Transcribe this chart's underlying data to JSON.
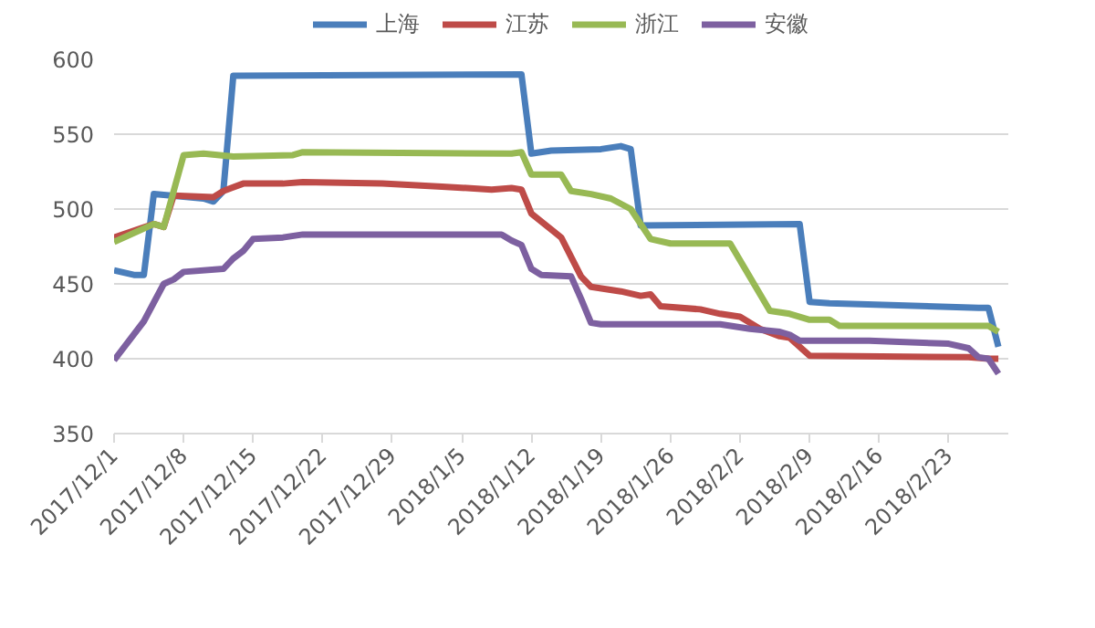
{
  "chart_data": {
    "type": "line",
    "xlim": [
      "2017-12-01",
      "2018-03-01"
    ],
    "xticks": [
      {
        "value": "2017-12-01",
        "label": "2017/12/1"
      },
      {
        "value": "2017-12-08",
        "label": "2017/12/8"
      },
      {
        "value": "2017-12-15",
        "label": "2017/12/15"
      },
      {
        "value": "2017-12-22",
        "label": "2017/12/22"
      },
      {
        "value": "2017-12-29",
        "label": "2017/12/29"
      },
      {
        "value": "2018-01-05",
        "label": "2018/1/5"
      },
      {
        "value": "2018-01-12",
        "label": "2018/1/12"
      },
      {
        "value": "2018-01-19",
        "label": "2018/1/19"
      },
      {
        "value": "2018-01-26",
        "label": "2018/1/26"
      },
      {
        "value": "2018-02-02",
        "label": "2018/2/2"
      },
      {
        "value": "2018-02-09",
        "label": "2018/2/9"
      },
      {
        "value": "2018-02-16",
        "label": "2018/2/16"
      },
      {
        "value": "2018-02-23",
        "label": "2018/2/23"
      }
    ],
    "ylim": [
      350,
      600
    ],
    "yticks": [
      350,
      400,
      450,
      500,
      550,
      600
    ],
    "grid": "y",
    "legend": "top",
    "line_style": "solid",
    "series": [
      {
        "name": "上海",
        "color": "#4a7ebb",
        "x": [
          "2017-12-01",
          "2017-12-03",
          "2017-12-04",
          "2017-12-05",
          "2017-12-10",
          "2017-12-11",
          "2017-12-12",
          "2017-12-13",
          "2018-01-11",
          "2018-01-12",
          "2018-01-14",
          "2018-01-19",
          "2018-01-21",
          "2018-01-22",
          "2018-01-23",
          "2018-02-08",
          "2018-02-09",
          "2018-02-11",
          "2018-02-26",
          "2018-02-27",
          "2018-02-28"
        ],
        "values": [
          459,
          456,
          456,
          510,
          507,
          505,
          512,
          589,
          590,
          537,
          539,
          540,
          542,
          540,
          489,
          490,
          438,
          437,
          434,
          434,
          408
        ]
      },
      {
        "name": "江苏",
        "color": "#be4b48",
        "x": [
          "2017-12-01",
          "2017-12-05",
          "2017-12-06",
          "2017-12-07",
          "2017-12-11",
          "2017-12-12",
          "2017-12-14",
          "2017-12-18",
          "2017-12-20",
          "2017-12-28",
          "2018-01-03",
          "2018-01-08",
          "2018-01-10",
          "2018-01-11",
          "2018-01-12",
          "2018-01-15",
          "2018-01-17",
          "2018-01-18",
          "2018-01-21",
          "2018-01-23",
          "2018-01-24",
          "2018-01-25",
          "2018-01-29",
          "2018-01-31",
          "2018-02-02",
          "2018-02-04",
          "2018-02-06",
          "2018-02-07",
          "2018-02-09",
          "2018-02-25",
          "2018-02-27",
          "2018-02-28"
        ],
        "values": [
          481,
          490,
          488,
          509,
          508,
          512,
          517,
          517,
          518,
          517,
          515,
          513,
          514,
          513,
          497,
          481,
          455,
          448,
          445,
          442,
          443,
          435,
          433,
          430,
          428,
          420,
          415,
          414,
          402,
          401,
          400,
          400
        ]
      },
      {
        "name": "浙江",
        "color": "#98b954",
        "x": [
          "2017-12-01",
          "2017-12-05",
          "2017-12-06",
          "2017-12-08",
          "2017-12-10",
          "2017-12-13",
          "2017-12-19",
          "2017-12-20",
          "2018-01-10",
          "2018-01-11",
          "2018-01-12",
          "2018-01-15",
          "2018-01-16",
          "2018-01-18",
          "2018-01-20",
          "2018-01-22",
          "2018-01-24",
          "2018-01-26",
          "2018-02-01",
          "2018-02-05",
          "2018-02-07",
          "2018-02-09",
          "2018-02-11",
          "2018-02-12",
          "2018-02-27",
          "2018-02-28"
        ],
        "values": [
          478,
          490,
          488,
          536,
          537,
          535,
          536,
          538,
          537,
          538,
          523,
          523,
          512,
          510,
          507,
          500,
          480,
          477,
          477,
          432,
          430,
          426,
          426,
          422,
          422,
          418
        ]
      },
      {
        "name": "安徽",
        "color": "#7d60a0",
        "x": [
          "2017-12-01",
          "2017-12-04",
          "2017-12-06",
          "2017-12-07",
          "2017-12-08",
          "2017-12-12",
          "2017-12-13",
          "2017-12-14",
          "2017-12-15",
          "2017-12-18",
          "2017-12-20",
          "2018-01-09",
          "2018-01-10",
          "2018-01-11",
          "2018-01-12",
          "2018-01-13",
          "2018-01-16",
          "2018-01-17",
          "2018-01-18",
          "2018-01-19",
          "2018-01-31",
          "2018-02-03",
          "2018-02-06",
          "2018-02-07",
          "2018-02-08",
          "2018-02-15",
          "2018-02-23",
          "2018-02-25",
          "2018-02-26",
          "2018-02-27",
          "2018-02-28"
        ],
        "values": [
          399,
          425,
          450,
          453,
          458,
          460,
          467,
          472,
          480,
          481,
          483,
          483,
          479,
          476,
          460,
          456,
          455,
          440,
          424,
          423,
          423,
          420,
          418,
          416,
          412,
          412,
          410,
          407,
          401,
          400,
          390
        ]
      }
    ]
  }
}
